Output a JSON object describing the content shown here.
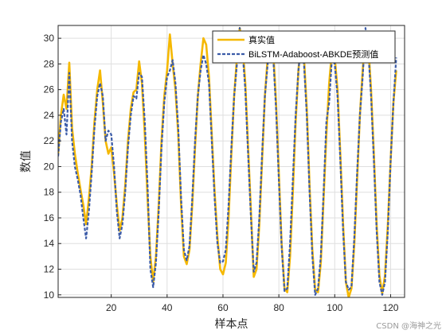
{
  "chart_data": {
    "type": "line",
    "xlabel": "样本点",
    "ylabel": "数值",
    "xlim": [
      1,
      125
    ],
    "ylim": [
      9.8,
      31.0
    ],
    "xticks": [
      20,
      40,
      60,
      80,
      100,
      120
    ],
    "yticks": [
      10,
      12,
      14,
      16,
      18,
      20,
      22,
      24,
      26,
      28,
      30
    ],
    "grid": true,
    "legend_position": "top-right",
    "series": [
      {
        "name": "真实值",
        "color": "#f5b800",
        "style": "solid",
        "points": [
          [
            1,
            21.0
          ],
          [
            2,
            24.0
          ],
          [
            3,
            25.6
          ],
          [
            4,
            24.5
          ],
          [
            5,
            28.1
          ],
          [
            6,
            23.0
          ],
          [
            7,
            21.0
          ],
          [
            8,
            19.5
          ],
          [
            9,
            18.2
          ],
          [
            10,
            17.0
          ],
          [
            11,
            15.5
          ],
          [
            12,
            17.5
          ],
          [
            13,
            20.0
          ],
          [
            14,
            23.5
          ],
          [
            15,
            26.0
          ],
          [
            16,
            27.5
          ],
          [
            17,
            25.0
          ],
          [
            18,
            22.0
          ],
          [
            19,
            21.0
          ],
          [
            20,
            21.5
          ],
          [
            21,
            19.5
          ],
          [
            22,
            17.0
          ],
          [
            23,
            15.0
          ],
          [
            24,
            16.0
          ],
          [
            25,
            18.5
          ],
          [
            26,
            22.0
          ],
          [
            27,
            24.5
          ],
          [
            28,
            25.8
          ],
          [
            29,
            26.0
          ],
          [
            30,
            28.2
          ],
          [
            31,
            26.5
          ],
          [
            32,
            22.5
          ],
          [
            33,
            17.5
          ],
          [
            34,
            13.0
          ],
          [
            35,
            11.0
          ],
          [
            36,
            13.0
          ],
          [
            37,
            17.0
          ],
          [
            38,
            22.0
          ],
          [
            39,
            25.5
          ],
          [
            40,
            27.5
          ],
          [
            41,
            30.3
          ],
          [
            42,
            28.0
          ],
          [
            43,
            26.0
          ],
          [
            44,
            22.5
          ],
          [
            45,
            17.0
          ],
          [
            46,
            13.0
          ],
          [
            47,
            12.4
          ],
          [
            48,
            13.5
          ],
          [
            49,
            17.0
          ],
          [
            50,
            21.5
          ],
          [
            51,
            25.5
          ],
          [
            52,
            28.0
          ],
          [
            53,
            30.0
          ],
          [
            54,
            29.5
          ],
          [
            55,
            27.0
          ],
          [
            56,
            22.5
          ],
          [
            57,
            18.0
          ],
          [
            58,
            14.5
          ],
          [
            59,
            12.0
          ],
          [
            60,
            11.6
          ],
          [
            61,
            12.5
          ],
          [
            62,
            16.0
          ],
          [
            63,
            21.0
          ],
          [
            64,
            25.5
          ],
          [
            65,
            28.5
          ],
          [
            66,
            30.8
          ],
          [
            67,
            29.5
          ],
          [
            68,
            26.5
          ],
          [
            69,
            21.5
          ],
          [
            70,
            16.5
          ],
          [
            71,
            11.4
          ],
          [
            72,
            12.0
          ],
          [
            73,
            15.5
          ],
          [
            74,
            20.5
          ],
          [
            75,
            25.5
          ],
          [
            76,
            28.5
          ],
          [
            77,
            30.2
          ],
          [
            78,
            29.0
          ],
          [
            79,
            25.0
          ],
          [
            80,
            19.5
          ],
          [
            81,
            14.0
          ],
          [
            82,
            10.5
          ],
          [
            83,
            10.2
          ],
          [
            84,
            13.0
          ],
          [
            85,
            18.0
          ],
          [
            86,
            23.5
          ],
          [
            87,
            27.5
          ],
          [
            88,
            30.0
          ],
          [
            89,
            28.5
          ],
          [
            90,
            24.5
          ],
          [
            91,
            18.5
          ],
          [
            92,
            13.5
          ],
          [
            93,
            10.4
          ],
          [
            94,
            10.2
          ],
          [
            95,
            12.5
          ],
          [
            96,
            17.5
          ],
          [
            97,
            22.5
          ],
          [
            98,
            26.5
          ],
          [
            99,
            29.0
          ],
          [
            100,
            28.5
          ],
          [
            101,
            26.0
          ],
          [
            102,
            21.0
          ],
          [
            103,
            15.5
          ],
          [
            104,
            11.0
          ],
          [
            105,
            9.8
          ],
          [
            106,
            10.5
          ],
          [
            107,
            14.0
          ],
          [
            108,
            19.0
          ],
          [
            109,
            24.0
          ],
          [
            110,
            27.5
          ],
          [
            111,
            30.5
          ],
          [
            112,
            29.5
          ],
          [
            113,
            26.0
          ],
          [
            114,
            21.0
          ],
          [
            115,
            15.5
          ],
          [
            116,
            11.5
          ],
          [
            117,
            10.1
          ],
          [
            118,
            11.5
          ],
          [
            119,
            15.5
          ],
          [
            120,
            20.5
          ],
          [
            121,
            25.0
          ],
          [
            122,
            27.5
          ]
        ]
      },
      {
        "name": "BiLSTM-Adaboost-ABKDE预测值",
        "color": "#3b5ba8",
        "style": "dashed",
        "points": [
          [
            1,
            20.8
          ],
          [
            2,
            23.5
          ],
          [
            3,
            24.5
          ],
          [
            4,
            22.5
          ],
          [
            5,
            27.3
          ],
          [
            6,
            22.0
          ],
          [
            7,
            20.0
          ],
          [
            8,
            19.0
          ],
          [
            9,
            17.8
          ],
          [
            10,
            16.0
          ],
          [
            11,
            14.4
          ],
          [
            12,
            16.5
          ],
          [
            13,
            19.5
          ],
          [
            14,
            23.0
          ],
          [
            15,
            25.5
          ],
          [
            16,
            26.5
          ],
          [
            17,
            25.5
          ],
          [
            18,
            22.0
          ],
          [
            19,
            22.8
          ],
          [
            20,
            22.5
          ],
          [
            21,
            20.0
          ],
          [
            22,
            16.5
          ],
          [
            23,
            14.4
          ],
          [
            24,
            15.5
          ],
          [
            25,
            18.0
          ],
          [
            26,
            21.5
          ],
          [
            27,
            24.0
          ],
          [
            28,
            25.5
          ],
          [
            29,
            25.3
          ],
          [
            30,
            27.3
          ],
          [
            31,
            27.0
          ],
          [
            32,
            23.5
          ],
          [
            33,
            18.5
          ],
          [
            34,
            12.0
          ],
          [
            35,
            10.6
          ],
          [
            36,
            12.5
          ],
          [
            37,
            16.5
          ],
          [
            38,
            21.5
          ],
          [
            39,
            25.0
          ],
          [
            40,
            27.0
          ],
          [
            41,
            27.5
          ],
          [
            42,
            28.3
          ],
          [
            43,
            26.5
          ],
          [
            44,
            23.0
          ],
          [
            45,
            17.5
          ],
          [
            46,
            13.5
          ],
          [
            47,
            12.7
          ],
          [
            48,
            13.8
          ],
          [
            49,
            17.5
          ],
          [
            50,
            22.0
          ],
          [
            51,
            25.5
          ],
          [
            52,
            27.5
          ],
          [
            53,
            28.7
          ],
          [
            54,
            28.0
          ],
          [
            55,
            26.5
          ],
          [
            56,
            22.0
          ],
          [
            57,
            17.5
          ],
          [
            58,
            14.0
          ],
          [
            59,
            12.5
          ],
          [
            60,
            12.6
          ],
          [
            61,
            13.5
          ],
          [
            62,
            17.0
          ],
          [
            63,
            21.5
          ],
          [
            64,
            25.5
          ],
          [
            65,
            28.0
          ],
          [
            66,
            30.8
          ],
          [
            67,
            29.0
          ],
          [
            68,
            26.0
          ],
          [
            69,
            21.0
          ],
          [
            70,
            16.0
          ],
          [
            71,
            11.8
          ],
          [
            72,
            12.5
          ],
          [
            73,
            16.0
          ],
          [
            74,
            21.0
          ],
          [
            75,
            25.5
          ],
          [
            76,
            28.0
          ],
          [
            77,
            29.8
          ],
          [
            78,
            28.5
          ],
          [
            79,
            24.5
          ],
          [
            80,
            19.0
          ],
          [
            81,
            13.8
          ],
          [
            82,
            10.3
          ],
          [
            83,
            10.5
          ],
          [
            84,
            14.0
          ],
          [
            85,
            19.0
          ],
          [
            86,
            24.0
          ],
          [
            87,
            27.5
          ],
          [
            88,
            29.5
          ],
          [
            89,
            28.0
          ],
          [
            90,
            24.0
          ],
          [
            91,
            18.0
          ],
          [
            92,
            13.0
          ],
          [
            93,
            10.0
          ],
          [
            94,
            10.5
          ],
          [
            95,
            13.0
          ],
          [
            96,
            18.0
          ],
          [
            97,
            23.5
          ],
          [
            98,
            25.0
          ],
          [
            99,
            28.5
          ],
          [
            100,
            28.0
          ],
          [
            101,
            25.5
          ],
          [
            102,
            20.5
          ],
          [
            103,
            15.0
          ],
          [
            104,
            11.0
          ],
          [
            105,
            10.4
          ],
          [
            106,
            10.6
          ],
          [
            107,
            14.5
          ],
          [
            108,
            19.5
          ],
          [
            109,
            24.0
          ],
          [
            110,
            27.0
          ],
          [
            111,
            30.8
          ],
          [
            112,
            29.0
          ],
          [
            113,
            25.5
          ],
          [
            114,
            20.5
          ],
          [
            115,
            15.0
          ],
          [
            116,
            11.0
          ],
          [
            117,
            10.0
          ],
          [
            118,
            11.0
          ],
          [
            119,
            15.0
          ],
          [
            120,
            20.5
          ],
          [
            121,
            25.0
          ],
          [
            122,
            28.5
          ]
        ]
      }
    ]
  },
  "watermark": "CSDN @海神之光"
}
